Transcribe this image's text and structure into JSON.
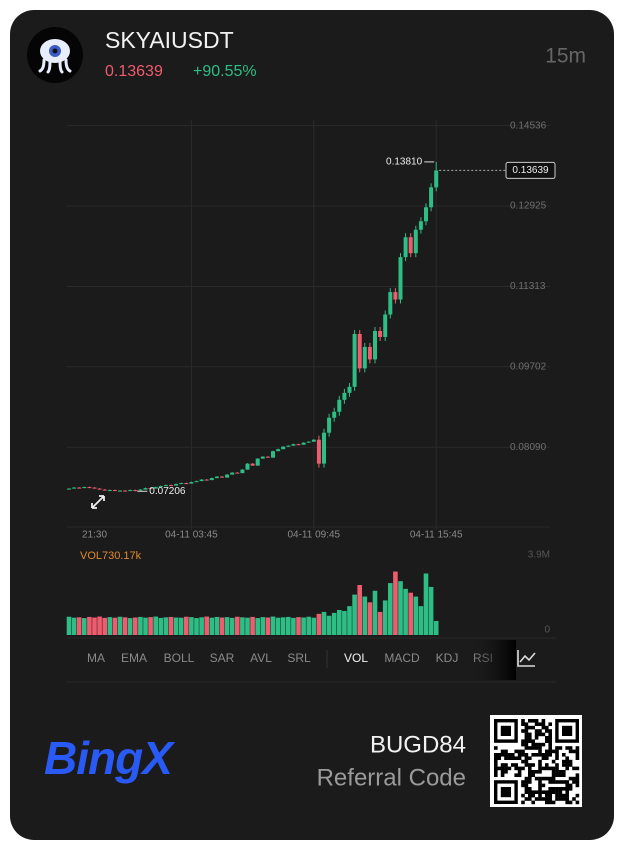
{
  "header": {
    "symbol": "SKYAIUSDT",
    "price": "0.13639",
    "change": "+90.55%",
    "interval": "15m"
  },
  "indicators": {
    "main": [
      "MA",
      "EMA",
      "BOLL",
      "SAR",
      "AVL",
      "SRL"
    ],
    "sub": [
      "VOL",
      "MACD",
      "KDJ",
      "RSI"
    ]
  },
  "footer": {
    "brand": "BingX",
    "referral_code": "BUGD84",
    "referral_label": "Referral Code"
  },
  "chart_data": {
    "type": "candlestick",
    "up_color": "#2ebd85",
    "down_color": "#ef5b6f",
    "grid": true,
    "categories": [
      null,
      null,
      null,
      null,
      null,
      "21:30",
      null,
      null,
      null,
      null,
      null,
      null,
      null,
      null,
      null,
      null,
      null,
      null,
      null,
      null,
      null,
      null,
      null,
      null,
      "04-11 03:45",
      null,
      null,
      null,
      null,
      null,
      null,
      null,
      null,
      null,
      null,
      null,
      null,
      null,
      null,
      null,
      null,
      null,
      null,
      null,
      null,
      null,
      null,
      null,
      "04-11 09:45",
      null,
      null,
      null,
      null,
      null,
      null,
      null,
      null,
      null,
      null,
      null,
      null,
      null,
      null,
      null,
      null,
      null,
      null,
      null,
      null,
      null,
      null,
      null,
      "04-11 15:45"
    ],
    "open": [
      0.0725,
      0.0726,
      0.0728,
      0.0727,
      0.0729,
      0.0728,
      0.0726,
      0.0724,
      0.0722,
      0.0723,
      0.0721,
      0.0722,
      0.0721,
      0.0723,
      0.0722,
      0.0724,
      0.0727,
      0.0726,
      0.0729,
      0.0731,
      0.0733,
      0.0732,
      0.0735,
      0.0737,
      0.0736,
      0.0739,
      0.0741,
      0.0744,
      0.0743,
      0.0747,
      0.075,
      0.0748,
      0.0754,
      0.0758,
      0.0757,
      0.0764,
      0.0776,
      0.0772,
      0.0786,
      0.079,
      0.0788,
      0.0801,
      0.0805,
      0.081,
      0.0812,
      0.0815,
      0.0814,
      0.0818,
      0.082,
      0.0824,
      0.0776,
      0.0838,
      0.0868,
      0.088,
      0.0904,
      0.0918,
      0.093,
      0.1036,
      0.0967,
      0.101,
      0.0985,
      0.1042,
      0.103,
      0.1075,
      0.112,
      0.1105,
      0.119,
      0.123,
      0.1198,
      0.1245,
      0.1262,
      0.129,
      0.133
    ],
    "high": [
      0.0727,
      0.0729,
      0.0729,
      0.073,
      0.073,
      0.0729,
      0.0727,
      0.0725,
      0.0724,
      0.0724,
      0.0723,
      0.0723,
      0.0724,
      0.0724,
      0.0725,
      0.0728,
      0.0728,
      0.073,
      0.0732,
      0.0734,
      0.0734,
      0.0736,
      0.0738,
      0.0738,
      0.074,
      0.0742,
      0.0745,
      0.0745,
      0.0748,
      0.0751,
      0.0751,
      0.0755,
      0.0759,
      0.0759,
      0.0765,
      0.0777,
      0.0777,
      0.0787,
      0.0791,
      0.0791,
      0.0802,
      0.0806,
      0.0811,
      0.0813,
      0.0816,
      0.0816,
      0.0819,
      0.0821,
      0.0825,
      0.0832,
      0.0846,
      0.0876,
      0.0888,
      0.0912,
      0.0926,
      0.0938,
      0.1044,
      0.1044,
      0.1018,
      0.1018,
      0.105,
      0.105,
      0.1083,
      0.1128,
      0.1128,
      0.1198,
      0.1238,
      0.1238,
      0.1253,
      0.127,
      0.1298,
      0.1338,
      0.1381
    ],
    "low": [
      0.0725,
      0.0726,
      0.0727,
      0.0727,
      0.0728,
      0.0726,
      0.0724,
      0.0722,
      0.0722,
      0.0721,
      0.0721,
      0.0721,
      0.0721,
      0.07206,
      0.0722,
      0.0724,
      0.0726,
      0.0726,
      0.0729,
      0.0731,
      0.0732,
      0.0732,
      0.0735,
      0.0736,
      0.0736,
      0.0739,
      0.0741,
      0.0743,
      0.0743,
      0.0747,
      0.0748,
      0.0748,
      0.0754,
      0.0757,
      0.0757,
      0.0764,
      0.0772,
      0.0772,
      0.0786,
      0.0788,
      0.0788,
      0.0801,
      0.0805,
      0.081,
      0.0812,
      0.0814,
      0.0814,
      0.0818,
      0.082,
      0.0768,
      0.0768,
      0.083,
      0.086,
      0.0872,
      0.0896,
      0.091,
      0.0922,
      0.0959,
      0.0959,
      0.0977,
      0.0977,
      0.1022,
      0.1022,
      0.1067,
      0.1097,
      0.1097,
      0.1182,
      0.119,
      0.119,
      0.1237,
      0.1254,
      0.1282,
      0.1322
    ],
    "close": [
      0.0726,
      0.0728,
      0.0727,
      0.0729,
      0.0728,
      0.0726,
      0.0724,
      0.0722,
      0.0723,
      0.0721,
      0.0722,
      0.0721,
      0.0723,
      0.0722,
      0.0724,
      0.0727,
      0.0726,
      0.0729,
      0.0731,
      0.0733,
      0.0732,
      0.0735,
      0.0737,
      0.0736,
      0.0739,
      0.0741,
      0.0744,
      0.0743,
      0.0747,
      0.075,
      0.0748,
      0.0754,
      0.0758,
      0.0757,
      0.0764,
      0.0776,
      0.0772,
      0.0786,
      0.079,
      0.0788,
      0.0801,
      0.0805,
      0.081,
      0.0812,
      0.0815,
      0.0814,
      0.0818,
      0.082,
      0.0824,
      0.0776,
      0.0838,
      0.0868,
      0.088,
      0.0904,
      0.0918,
      0.093,
      0.1036,
      0.0967,
      0.101,
      0.0985,
      0.1042,
      0.103,
      0.1075,
      0.112,
      0.1105,
      0.119,
      0.123,
      0.1198,
      0.1245,
      0.1262,
      0.129,
      0.133,
      0.13639
    ],
    "volume": [
      950000,
      900000,
      920000,
      880000,
      940000,
      910000,
      960000,
      890000,
      930000,
      900000,
      950000,
      920000,
      880000,
      910000,
      940000,
      900000,
      930000,
      960000,
      890000,
      920000,
      940000,
      910000,
      900000,
      950000,
      930000,
      880000,
      920000,
      960000,
      900000,
      940000,
      910000,
      930000,
      890000,
      950000,
      920000,
      900000,
      940000,
      880000,
      930000,
      910000,
      960000,
      900000,
      920000,
      940000,
      890000,
      930000,
      910000,
      950000,
      900000,
      1100000,
      1200000,
      1000000,
      1150000,
      1300000,
      1250000,
      1500000,
      2100000,
      2600000,
      2000000,
      1700000,
      2300000,
      1200000,
      1800000,
      2700000,
      3300000,
      2800000,
      2400000,
      2200000,
      2000000,
      1500000,
      3200000,
      2500000,
      730170
    ],
    "volume_label": "VOL730.17k",
    "ylim": [
      0.0653,
      0.1465
    ],
    "yticks": [
      0.14536,
      0.12925,
      0.11313,
      0.09702,
      {
        "value": 0.0809,
        "label": "0.08090"
      }
    ],
    "volume_lim": [
      0,
      3900000
    ],
    "volume_ticks": [
      {
        "value": 3900000,
        "label": "3.9M"
      },
      0
    ],
    "high_marker": {
      "value": 0.1381,
      "label": "0.13810"
    },
    "low_marker": 0.07206,
    "last_marker": 0.13639
  }
}
